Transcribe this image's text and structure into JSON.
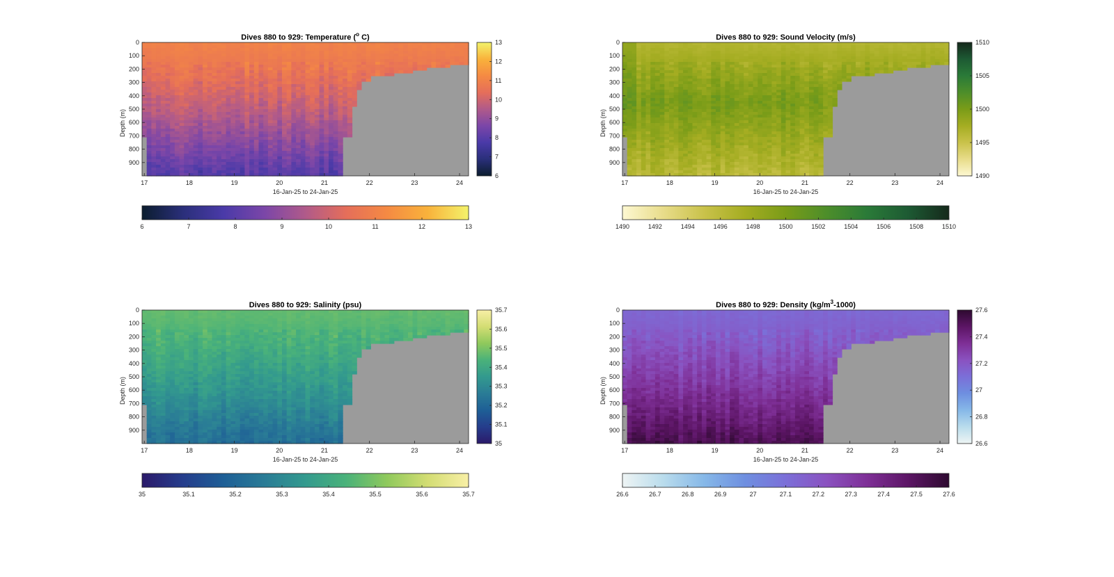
{
  "figure": {
    "xlabel": "16-Jan-25 to 24-Jan-25",
    "ylabel": "Depth (m)",
    "x_ticks": [
      "17",
      "18",
      "19",
      "20",
      "21",
      "22",
      "23",
      "24"
    ],
    "y_ticks": [
      "0",
      "100",
      "200",
      "300",
      "400",
      "500",
      "600",
      "700",
      "800",
      "900"
    ],
    "nodata_color": "#9b9b9b"
  },
  "chart_data": [
    {
      "type": "heatmap",
      "id": "temperature",
      "title": "Dives 880 to 929: Temperature (",
      "title_sup": "o",
      "title_end": " C)",
      "xlabel": "16-Jan-25 to 24-Jan-25",
      "ylabel": "Depth (m)",
      "xlim": [
        16.95,
        24.2
      ],
      "ylim": [
        0,
        1000
      ],
      "clim": [
        6,
        13
      ],
      "colormap": [
        "#0b1d2e",
        "#2a2f7a",
        "#4a3aa8",
        "#7b46a8",
        "#b05a8a",
        "#e56e5a",
        "#f58a43",
        "#f9b23b",
        "#f3f36b"
      ],
      "side_ticks": [
        "6",
        "7",
        "8",
        "9",
        "10",
        "11",
        "12",
        "13"
      ],
      "bottom_ticks": [
        "6",
        "7",
        "8",
        "9",
        "10",
        "11",
        "12",
        "13"
      ],
      "surface_value": 11.0,
      "bottom_value": 7.9,
      "left_value_factor": 1.0
    },
    {
      "type": "heatmap",
      "id": "sound-velocity",
      "title": "Dives 880 to 929: Sound Velocity (m/s)",
      "title_sup": "",
      "title_end": "",
      "xlabel": "16-Jan-25 to 24-Jan-25",
      "ylabel": "Depth (m)",
      "xlim": [
        16.95,
        24.2
      ],
      "ylim": [
        0,
        1000
      ],
      "clim": [
        1490,
        1510
      ],
      "colormap": [
        "#fdf8d2",
        "#e8dc8a",
        "#c9c24a",
        "#a5ad22",
        "#7a9c18",
        "#4d8e2a",
        "#2a7a38",
        "#1d5a33",
        "#15291b"
      ],
      "side_ticks": [
        "1490",
        "1495",
        "1500",
        "1505",
        "1510"
      ],
      "bottom_ticks": [
        "1490",
        "1492",
        "1494",
        "1496",
        "1498",
        "1500",
        "1502",
        "1504",
        "1506",
        "1508",
        "1510"
      ],
      "surface_value": 1496.5,
      "bottom_value": 1496.0,
      "mid_value": 1500.0,
      "left_value_factor": 1.0
    },
    {
      "type": "heatmap",
      "id": "salinity",
      "title": "Dives 880 to 929: Salinity (psu)",
      "title_sup": "",
      "title_end": "",
      "xlabel": "16-Jan-25 to 24-Jan-25",
      "ylabel": "Depth (m)",
      "xlim": [
        16.95,
        24.2
      ],
      "ylim": [
        0,
        1000
      ],
      "clim": [
        35,
        35.7
      ],
      "colormap": [
        "#2b1a6a",
        "#253d8c",
        "#1e5f96",
        "#2a7c96",
        "#339a8e",
        "#4ab27a",
        "#8fc95c",
        "#d3dd73",
        "#f8efa6"
      ],
      "side_ticks": [
        "35",
        "35.1",
        "35.2",
        "35.3",
        "35.4",
        "35.5",
        "35.6",
        "35.7"
      ],
      "bottom_ticks": [
        "35",
        "35.1",
        "35.2",
        "35.3",
        "35.4",
        "35.5",
        "35.6",
        "35.7"
      ],
      "surface_value": 35.47,
      "bottom_value": 35.22,
      "left_value_factor": 1.0
    },
    {
      "type": "heatmap",
      "id": "density",
      "title": "Dives 880 to 929: Density (kg/m",
      "title_sup": "3",
      "title_end": "-1000)",
      "xlabel": "16-Jan-25 to 24-Jan-25",
      "ylabel": "Depth (m)",
      "xlim": [
        16.95,
        24.2
      ],
      "ylim": [
        0,
        1000
      ],
      "clim": [
        26.6,
        27.6
      ],
      "colormap": [
        "#eef4f4",
        "#b9dcec",
        "#86b8e8",
        "#6e8fe0",
        "#7b6fd8",
        "#8a52c0",
        "#7e2f96",
        "#5c1565",
        "#2e0a30"
      ],
      "side_ticks": [
        "26.6",
        "26.8",
        "27",
        "27.2",
        "27.4",
        "27.6"
      ],
      "bottom_ticks": [
        "26.6",
        "26.7",
        "26.8",
        "26.9",
        "27",
        "27.1",
        "27.2",
        "27.3",
        "27.4",
        "27.5",
        "27.6"
      ],
      "surface_value": 27.13,
      "bottom_value": 27.52,
      "left_value_factor": 1.0
    }
  ],
  "bathymetry": {
    "description_x_days": [
      16.95,
      17.1,
      17.1,
      21.45,
      21.45,
      21.6,
      21.6,
      21.75,
      21.75,
      21.85,
      21.85,
      22.0,
      22.0,
      22.2,
      22.2,
      22.5,
      22.5,
      23.0,
      23.0,
      23.3,
      23.3,
      23.5,
      23.5,
      23.8,
      23.8,
      24.2
    ],
    "floor_depth_m": [
      700,
      700,
      990,
      990,
      700,
      700,
      470,
      470,
      350,
      350,
      290,
      290,
      260,
      260,
      240,
      240,
      225,
      225,
      210,
      210,
      195,
      195,
      180,
      180,
      165,
      165
    ]
  }
}
